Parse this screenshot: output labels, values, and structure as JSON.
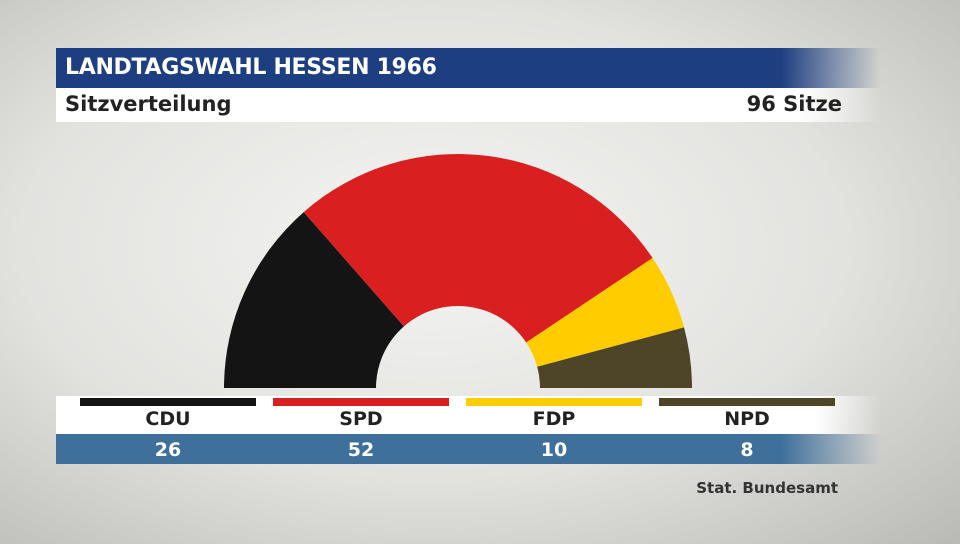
{
  "header": {
    "title": "LANDTAGSWAHL HESSEN 1966",
    "subtitle": "Sitzverteilung",
    "total_seats": "96 Sitze"
  },
  "source": "Stat. Bundesamt",
  "colors": {
    "title_bar": "#1d3e80",
    "values_bar": "#3f6f9b"
  },
  "chart_data": {
    "type": "pie",
    "variant": "semicircle",
    "categories": [
      "CDU",
      "SPD",
      "FDP",
      "NPD"
    ],
    "values": [
      26,
      52,
      10,
      8
    ],
    "value_labels": [
      "26",
      "52",
      "10",
      "8"
    ],
    "colors": [
      "#141414",
      "#d91f1f",
      "#ffcc00",
      "#4e4428"
    ],
    "total": 96
  }
}
